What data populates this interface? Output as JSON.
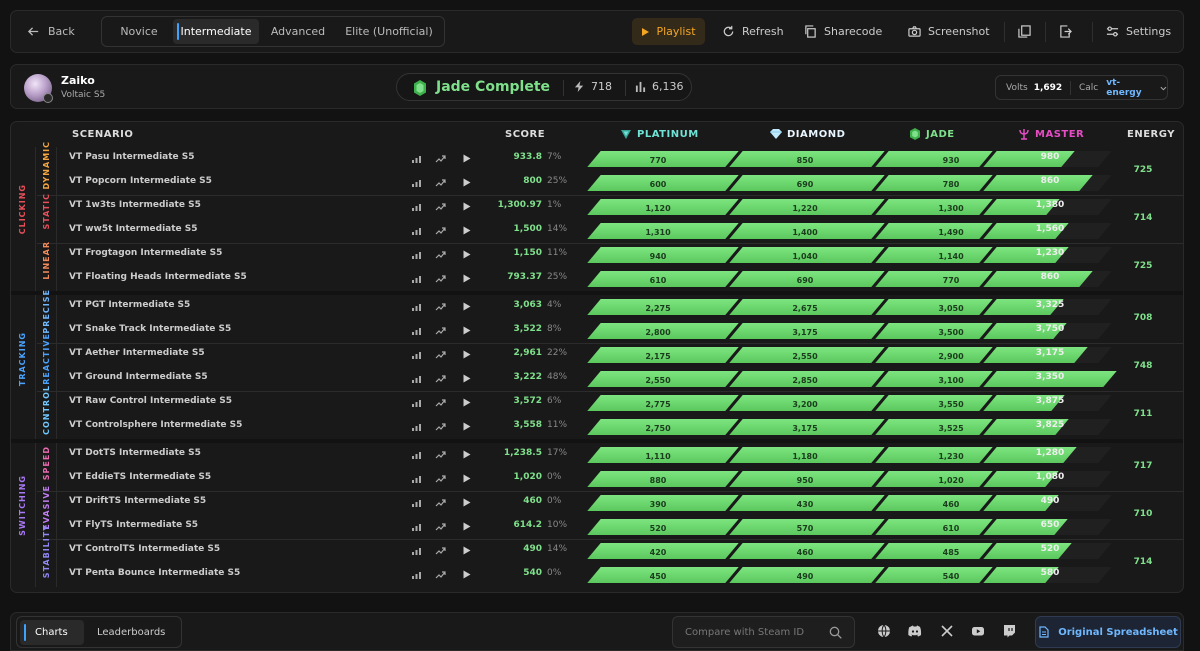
{
  "topbar": {
    "back_label": "Back",
    "tabs": [
      "Novice",
      "Intermediate",
      "Advanced",
      "Elite (Unofficial)"
    ],
    "active_tab": "Intermediate",
    "playlist_label": "Playlist",
    "refresh_label": "Refresh",
    "sharecode_label": "Sharecode",
    "screenshot_label": "Screenshot",
    "settings_label": "Settings"
  },
  "profile": {
    "name": "Zaiko",
    "subtitle": "Voltaic S5",
    "rank": "Jade Complete",
    "stat_energy": "718",
    "stat_total": "6,136",
    "volts_label": "Volts",
    "volts_value": "1,692",
    "calc_label": "Calc",
    "calc_value": "vt-energy"
  },
  "columns": {
    "scenario": "SCENARIO",
    "score": "SCORE",
    "platinum": "PLATINUM",
    "diamond": "DIAMOND",
    "jade": "JADE",
    "master": "MASTER",
    "energy": "ENERGY"
  },
  "colors": {
    "platinum": "#6fe3d6",
    "diamond": "#bfe9ff",
    "jade": "#7fe08b",
    "master": "#e64cc4",
    "clicking": "#e8505b",
    "tracking": "#4aa3ff",
    "switching": "#a978f5",
    "score": "#7fe08b"
  },
  "categories": [
    {
      "name": "CLICKING",
      "color": "#e8505b",
      "groups": [
        {
          "name": "DYNAMIC",
          "color": "#f2a541",
          "energy": "725",
          "rows": [
            {
              "scenario": "VT Pasu Intermediate S5",
              "score": "933.8",
              "pct": "7%",
              "fill": 0.905,
              "platinum": "770",
              "diamond": "850",
              "jade": "930",
              "master": "980"
            },
            {
              "scenario": "VT Popcorn Intermediate S5",
              "score": "800",
              "pct": "25%",
              "fill": 0.94,
              "platinum": "600",
              "diamond": "690",
              "jade": "780",
              "master": "860"
            }
          ]
        },
        {
          "name": "STATIC",
          "color": "#e8505b",
          "energy": "714",
          "rows": [
            {
              "scenario": "VT 1w3ts Intermediate S5",
              "score": "1,300.97",
              "pct": "1%",
              "fill": 0.877,
              "platinum": "1,120",
              "diamond": "1,220",
              "jade": "1,300",
              "master": "1,380"
            },
            {
              "scenario": "VT ww5t Intermediate S5",
              "score": "1,500",
              "pct": "14%",
              "fill": 0.895,
              "platinum": "1,310",
              "diamond": "1,400",
              "jade": "1,490",
              "master": "1,560"
            }
          ]
        },
        {
          "name": "LINEAR",
          "color": "#f28b5b",
          "energy": "725",
          "rows": [
            {
              "scenario": "VT Frogtagon Intermediate S5",
              "score": "1,150",
              "pct": "11%",
              "fill": 0.895,
              "platinum": "940",
              "diamond": "1,040",
              "jade": "1,140",
              "master": "1,230"
            },
            {
              "scenario": "VT Floating Heads Intermediate S5",
              "score": "793.37",
              "pct": "25%",
              "fill": 0.94,
              "platinum": "610",
              "diamond": "690",
              "jade": "770",
              "master": "860"
            }
          ]
        }
      ]
    },
    {
      "name": "TRACKING",
      "color": "#4aa3ff",
      "groups": [
        {
          "name": "PRECISE",
          "color": "#6fb8ff",
          "energy": "708",
          "rows": [
            {
              "scenario": "VT PGT Intermediate S5",
              "score": "3,063",
              "pct": "4%",
              "fill": 0.885,
              "platinum": "2,275",
              "diamond": "2,675",
              "jade": "3,050",
              "master": "3,325"
            },
            {
              "scenario": "VT Snake Track Intermediate S5",
              "score": "3,522",
              "pct": "8%",
              "fill": 0.89,
              "platinum": "2,800",
              "diamond": "3,175",
              "jade": "3,500",
              "master": "3,750"
            }
          ]
        },
        {
          "name": "REACTIVE",
          "color": "#4aa3ff",
          "energy": "748",
          "rows": [
            {
              "scenario": "VT Aether Intermediate S5",
              "score": "2,961",
              "pct": "22%",
              "fill": 0.93,
              "platinum": "2,175",
              "diamond": "2,550",
              "jade": "2,900",
              "master": "3,175"
            },
            {
              "scenario": "VT Ground Intermediate S5",
              "score": "3,222",
              "pct": "48%",
              "fill": 0.985,
              "platinum": "2,550",
              "diamond": "2,850",
              "jade": "3,100",
              "master": "3,350"
            }
          ]
        },
        {
          "name": "CONTROL",
          "color": "#6fc8ff",
          "energy": "711",
          "rows": [
            {
              "scenario": "VT Raw Control Intermediate S5",
              "score": "3,572",
              "pct": "6%",
              "fill": 0.887,
              "platinum": "2,775",
              "diamond": "3,200",
              "jade": "3,550",
              "master": "3,875"
            },
            {
              "scenario": "VT Controlsphere Intermediate S5",
              "score": "3,558",
              "pct": "11%",
              "fill": 0.895,
              "platinum": "2,750",
              "diamond": "3,175",
              "jade": "3,525",
              "master": "3,825"
            }
          ]
        }
      ]
    },
    {
      "name": "SWITCHING",
      "color": "#a978f5",
      "groups": [
        {
          "name": "SPEED",
          "color": "#e86ab0",
          "energy": "717",
          "rows": [
            {
              "scenario": "VT DotTS Intermediate S5",
              "score": "1,238.5",
              "pct": "17%",
              "fill": 0.91,
              "platinum": "1,110",
              "diamond": "1,180",
              "jade": "1,230",
              "master": "1,280"
            },
            {
              "scenario": "VT EddieTS Intermediate S5",
              "score": "1,020",
              "pct": "0%",
              "fill": 0.875,
              "platinum": "880",
              "diamond": "950",
              "jade": "1,020",
              "master": "1,080"
            }
          ]
        },
        {
          "name": "EVASIVE",
          "color": "#c07ef0",
          "energy": "710",
          "rows": [
            {
              "scenario": "VT DriftTS Intermediate S5",
              "score": "460",
              "pct": "0%",
              "fill": 0.875,
              "platinum": "390",
              "diamond": "430",
              "jade": "460",
              "master": "490"
            },
            {
              "scenario": "VT FlyTS Intermediate S5",
              "score": "614.2",
              "pct": "10%",
              "fill": 0.893,
              "platinum": "520",
              "diamond": "570",
              "jade": "610",
              "master": "650"
            }
          ]
        },
        {
          "name": "STABILITY",
          "color": "#8f88f5",
          "energy": "714",
          "rows": [
            {
              "scenario": "VT ControlTS Intermediate S5",
              "score": "490",
              "pct": "14%",
              "fill": 0.9,
              "platinum": "420",
              "diamond": "460",
              "jade": "485",
              "master": "520"
            },
            {
              "scenario": "VT Penta Bounce Intermediate S5",
              "score": "540",
              "pct": "0%",
              "fill": 0.875,
              "platinum": "450",
              "diamond": "490",
              "jade": "540",
              "master": "580"
            }
          ]
        }
      ]
    }
  ],
  "footer": {
    "tabs": [
      "Charts",
      "Leaderboards"
    ],
    "active_tab": "Charts",
    "search_placeholder": "Compare with Steam ID",
    "social_icons": [
      "globe-icon",
      "discord-icon",
      "x-icon",
      "youtube-icon",
      "twitch-icon"
    ],
    "original_label": "Original Spreadsheet"
  }
}
